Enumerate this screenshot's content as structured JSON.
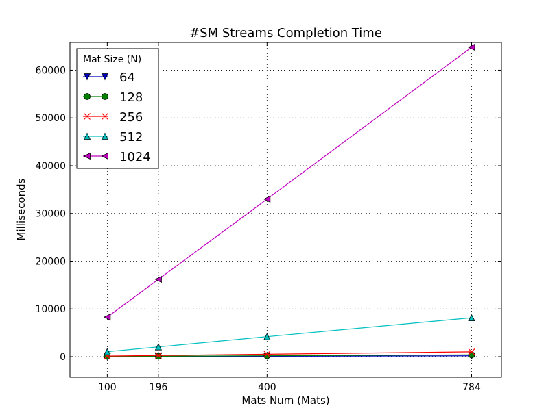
{
  "chart_data": {
    "type": "line",
    "title": "#SM Streams Completion Time",
    "xlabel": "Mats Num (Mats)",
    "ylabel": "Milliseconds",
    "x": [
      100,
      196,
      400,
      784
    ],
    "xticks": [
      100,
      196,
      400,
      784
    ],
    "yticks": [
      0,
      10000,
      20000,
      30000,
      40000,
      50000,
      60000
    ],
    "xlim": [
      30,
      840
    ],
    "ylim": [
      -4300,
      65800
    ],
    "grid": true,
    "legend": {
      "title": "Mat Size (N)",
      "placement": "top-left"
    },
    "series": [
      {
        "name": "64",
        "color": "#0000bf",
        "marker": "triangle-down",
        "values": [
          25,
          45,
          90,
          180
        ]
      },
      {
        "name": "128",
        "color": "#007f00",
        "marker": "circle",
        "values": [
          50,
          95,
          190,
          380
        ]
      },
      {
        "name": "256",
        "color": "#ff0000",
        "marker": "x",
        "values": [
          130,
          250,
          520,
          1020
        ]
      },
      {
        "name": "512",
        "color": "#00bfbf",
        "marker": "triangle-up",
        "values": [
          1050,
          2050,
          4200,
          8150
        ]
      },
      {
        "name": "1024",
        "color": "#bf00bf",
        "marker": "triangle-left",
        "values": [
          8300,
          16200,
          33000,
          64800
        ]
      }
    ]
  }
}
